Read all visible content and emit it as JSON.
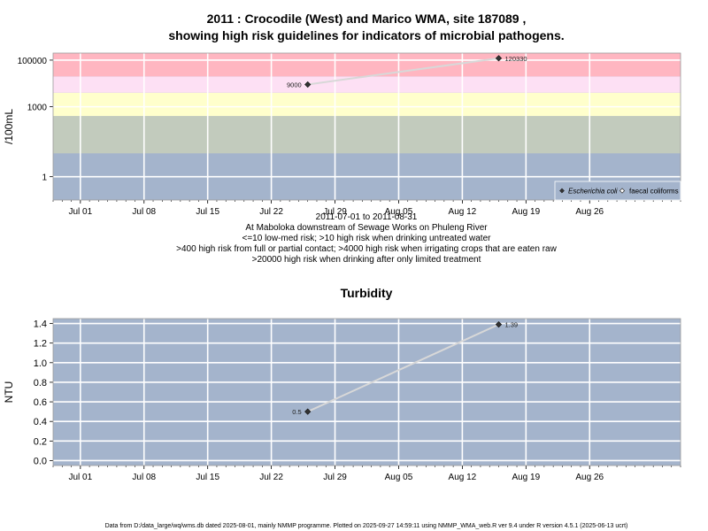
{
  "title_line1": "2011 : Crocodile (West) and Marico WMA, site 187089 ,",
  "title_line2": "showing high risk guidelines for indicators of microbial pathogens.",
  "footer": "Data from D:/data_large/wq/wms.db dated 2025-08-01, mainly NMMP programme. Plotted on 2025-09-27 14:59:11 using NMMP_WMA_web.R ver 9.4 under R version 4.5.1 (2025-06-13 ucrt)",
  "colors": {
    "red_band": "#ffb6c1",
    "pink_band": "#fde0f4",
    "yellow_band": "#ffffcc",
    "green_band": "#c2cbbd",
    "blue_band": "#a4b4cc",
    "grid": "#ffffff",
    "series_line": "#d8d8d8",
    "marker": "#333333"
  },
  "chart_data": [
    {
      "type": "line",
      "title": "",
      "ylabel": "/100mL",
      "yscale": "log",
      "ylim": [
        0.1,
        200000
      ],
      "xlim": [
        "2011-06-28",
        "2011-09-05"
      ],
      "x_ticks": [
        "2011-07-01",
        "2011-07-08",
        "2011-07-15",
        "2011-07-22",
        "2011-07-29",
        "2011-08-05",
        "2011-08-12",
        "2011-08-19",
        "2011-08-26"
      ],
      "x_tick_labels": [
        "Jul 01",
        "Jul 08",
        "Jul 15",
        "Jul 22",
        "Jul 29",
        "Aug 05",
        "Aug 12",
        "Aug 19",
        "Aug 26"
      ],
      "y_ticks": [
        1,
        1000,
        100000
      ],
      "y_tick_labels": [
        "1",
        "1000",
        "100000"
      ],
      "risk_bands": [
        {
          "from": 0.1,
          "to": 10,
          "color": "#a4b4cc"
        },
        {
          "from": 10,
          "to": 400,
          "color": "#c2cbbd"
        },
        {
          "from": 400,
          "to": 4000,
          "color": "#ffffcc"
        },
        {
          "from": 4000,
          "to": 20000,
          "color": "#fde0f4"
        },
        {
          "from": 20000,
          "to": 200000,
          "color": "#ffb6c1"
        }
      ],
      "series": [
        {
          "name": "Escherichia coli",
          "marker": "filled-diamond",
          "x": [
            "2011-07-26",
            "2011-08-16"
          ],
          "y": [
            9000,
            120330
          ],
          "labels": [
            "9000",
            "120330"
          ]
        }
      ],
      "legend": {
        "position": "bottom-right",
        "items": [
          "Escherichia coli",
          "faecal coliforms"
        ]
      },
      "caption_lines": [
        "2011-07-01 to 2011-08-31",
        "At Maboloka downstream of Sewage Works on Phuleng River",
        "<=10 low-med risk; >10 high risk when drinking untreated water",
        ">400 high risk from full or partial contact; >4000 high risk when irrigating crops that are eaten raw",
        ">20000 high risk when drinking after only limited treatment"
      ]
    },
    {
      "type": "line",
      "title": "Turbidity",
      "ylabel": "NTU",
      "ylim": [
        -0.05,
        1.45
      ],
      "xlim": [
        "2011-06-28",
        "2011-09-05"
      ],
      "x_ticks": [
        "2011-07-01",
        "2011-07-08",
        "2011-07-15",
        "2011-07-22",
        "2011-07-29",
        "2011-08-05",
        "2011-08-12",
        "2011-08-19",
        "2011-08-26"
      ],
      "x_tick_labels": [
        "Jul 01",
        "Jul 08",
        "Jul 15",
        "Jul 22",
        "Jul 29",
        "Aug 05",
        "Aug 12",
        "Aug 19",
        "Aug 26"
      ],
      "y_ticks": [
        0.0,
        0.2,
        0.4,
        0.6,
        0.8,
        1.0,
        1.2,
        1.4
      ],
      "y_tick_labels": [
        "0.0",
        "0.2",
        "0.4",
        "0.6",
        "0.8",
        "1.0",
        "1.2",
        "1.4"
      ],
      "series": [
        {
          "name": "",
          "marker": "filled-diamond",
          "x": [
            "2011-07-26",
            "2011-08-16"
          ],
          "y": [
            0.5,
            1.39
          ],
          "labels": [
            "0.5",
            "1.39"
          ]
        }
      ]
    }
  ]
}
